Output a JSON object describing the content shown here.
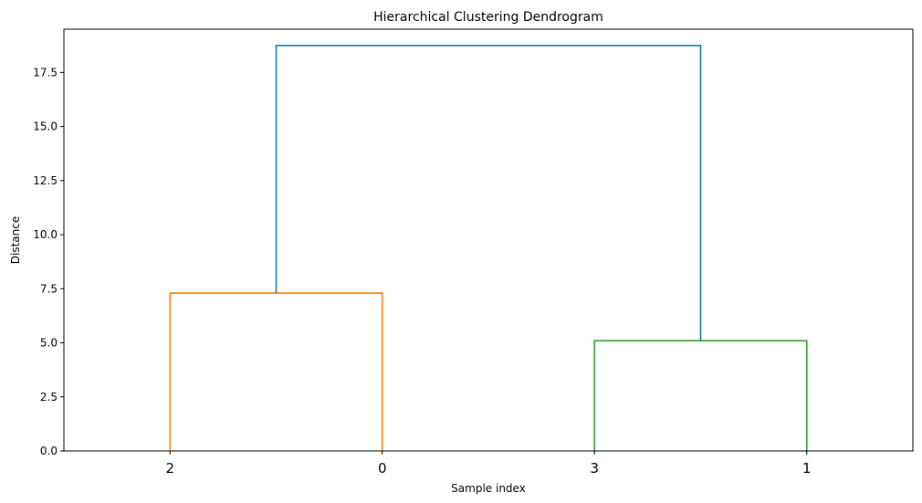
{
  "chart_data": {
    "type": "dendrogram",
    "title": "Hierarchical Clustering Dendrogram",
    "xlabel": "Sample index",
    "ylabel": "Distance",
    "ylim": [
      0,
      19.5
    ],
    "y_ticks": [
      0.0,
      2.5,
      5.0,
      7.5,
      10.0,
      12.5,
      15.0,
      17.5
    ],
    "y_tick_labels": [
      "0.0",
      "2.5",
      "5.0",
      "7.5",
      "10.0",
      "12.5",
      "15.0",
      "17.5"
    ],
    "leaf_order": [
      "2",
      "0",
      "3",
      "1"
    ],
    "merges": [
      {
        "left": "2",
        "right": "0",
        "distance": 7.3,
        "color": "#ff7f0e"
      },
      {
        "left": "3",
        "right": "1",
        "distance": 5.1,
        "color": "#2ca02c"
      },
      {
        "left": "cluster(2,0)",
        "right": "cluster(3,1)",
        "distance": 18.75,
        "color": "#1f77b4"
      }
    ],
    "grid": false,
    "legend": "none"
  }
}
